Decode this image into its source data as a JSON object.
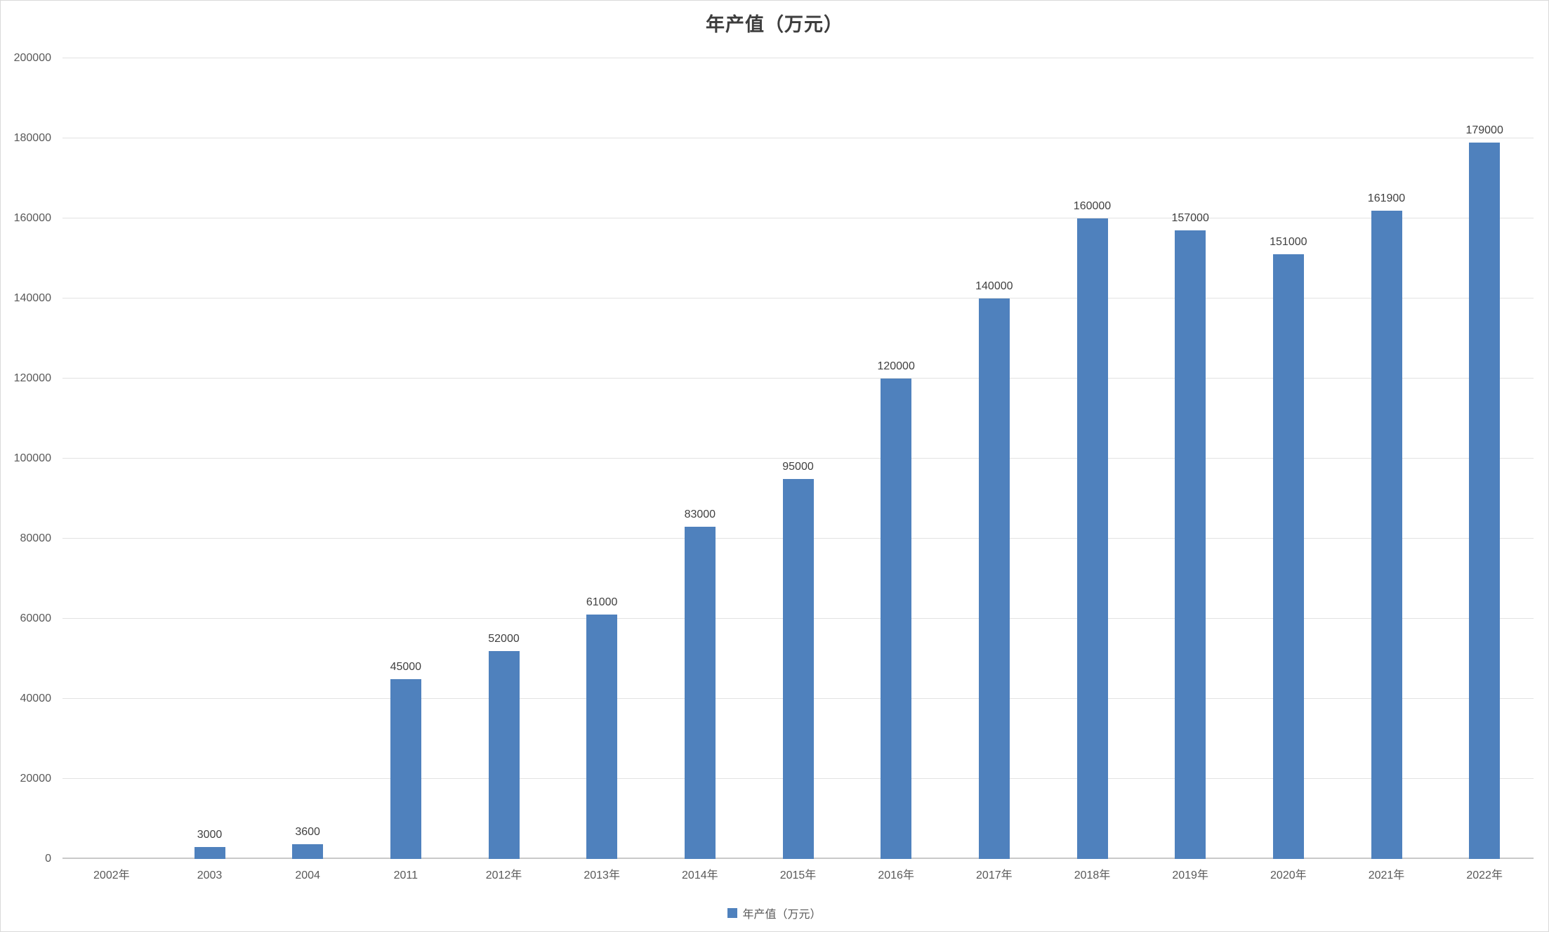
{
  "chart_data": {
    "type": "bar",
    "title": "年产值（万元）",
    "categories": [
      "2002年",
      "2003",
      "2004",
      "2011",
      "2012年",
      "2013年",
      "2014年",
      "2015年",
      "2016年",
      "2017年",
      "2018年",
      "2019年",
      "2020年",
      "2021年",
      "2022年"
    ],
    "values": [
      0,
      3000,
      3600,
      45000,
      52000,
      61000,
      83000,
      95000,
      120000,
      140000,
      160000,
      157000,
      151000,
      161900,
      179000
    ],
    "data_labels": [
      "",
      "3000",
      "3600",
      "45000",
      "52000",
      "61000",
      "83000",
      "95000",
      "120000",
      "140000",
      "160000",
      "157000",
      "151000",
      "161900",
      "179000"
    ],
    "xlabel": "",
    "ylabel": "",
    "ylim": [
      0,
      200000
    ],
    "ytick_step": 20000,
    "grid": true,
    "legend": {
      "position": "bottom",
      "entries": [
        "年产值（万元）"
      ]
    },
    "colors": {
      "bar": "#4f81bd",
      "gridline": "#e2e2e2",
      "axis_line": "#c9c9c9",
      "tick_text": "#595959",
      "data_label_text": "#3f3f3f",
      "title_text": "#3d3d3d"
    }
  }
}
